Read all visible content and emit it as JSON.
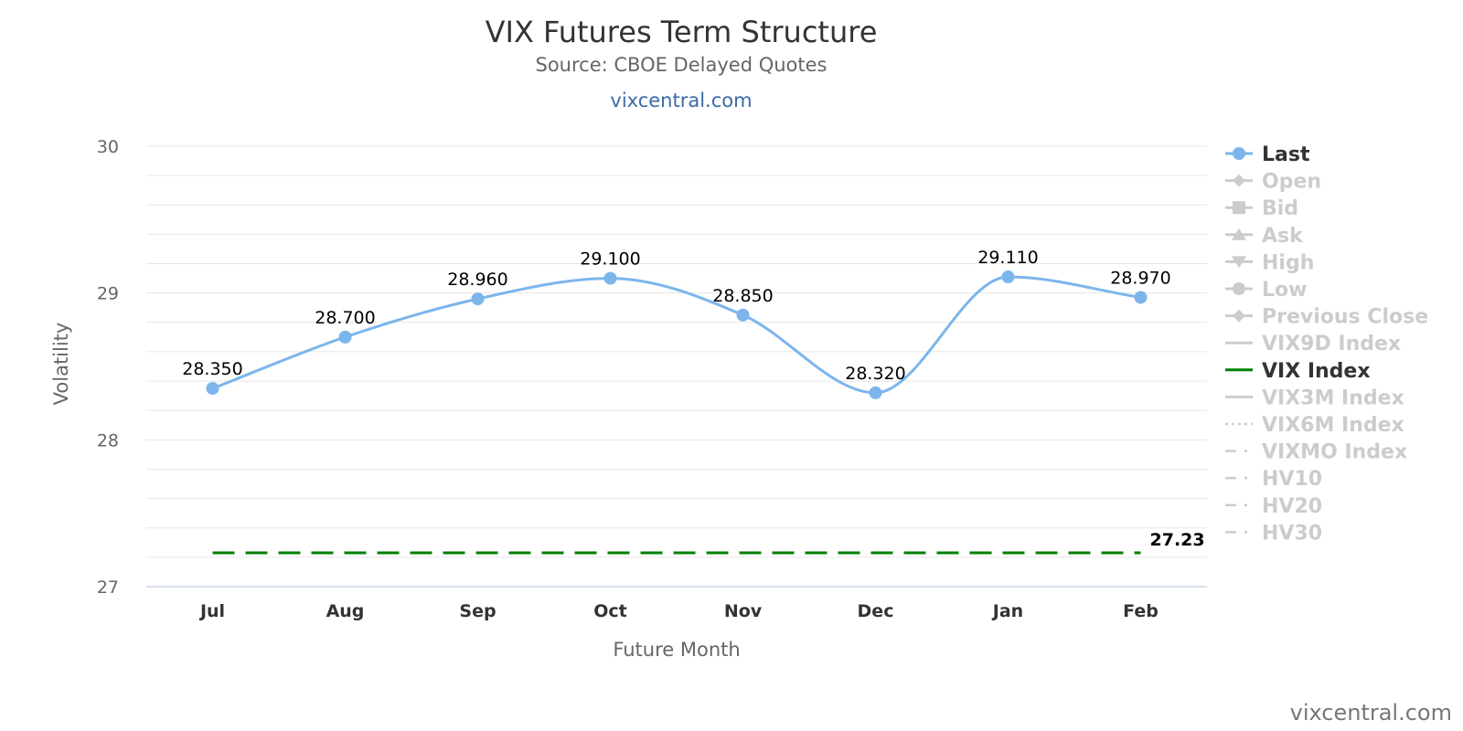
{
  "chart_data": {
    "type": "line",
    "title": "VIX Futures Term Structure",
    "subtitle": "Source: CBOE Delayed Quotes",
    "subtitle_link": "vixcentral.com",
    "xlabel": "Future Month",
    "ylabel": "Volatility",
    "categories": [
      "Jul",
      "Aug",
      "Sep",
      "Oct",
      "Nov",
      "Dec",
      "Jan",
      "Feb"
    ],
    "ylim": [
      27,
      30
    ],
    "yticks": [
      "27",
      "28",
      "29",
      "30"
    ],
    "grid": true,
    "legend_position": "right",
    "series": [
      {
        "name": "Last",
        "values": [
          28.35,
          28.7,
          28.96,
          29.1,
          28.85,
          28.32,
          29.11,
          28.97
        ],
        "labels": [
          "28.350",
          "28.700",
          "28.960",
          "29.100",
          "28.850",
          "28.320",
          "29.110",
          "28.970"
        ],
        "color": "#7cb5ec"
      },
      {
        "name": "VIX Index",
        "values": [
          27.23,
          27.23,
          27.23,
          27.23,
          27.23,
          27.23,
          27.23,
          27.23
        ],
        "end_label": "27.23",
        "color": "#008000",
        "dash": "dashed"
      }
    ],
    "legend": [
      {
        "name": "Last",
        "active": true,
        "symbol": "circle",
        "color": "#7cb5ec"
      },
      {
        "name": "Open",
        "active": false,
        "symbol": "diamond"
      },
      {
        "name": "Bid",
        "active": false,
        "symbol": "square"
      },
      {
        "name": "Ask",
        "active": false,
        "symbol": "triangle"
      },
      {
        "name": "High",
        "active": false,
        "symbol": "triangle-down"
      },
      {
        "name": "Low",
        "active": false,
        "symbol": "circle"
      },
      {
        "name": "Previous Close",
        "active": false,
        "symbol": "diamond"
      },
      {
        "name": "VIX9D Index",
        "active": false,
        "symbol": "line"
      },
      {
        "name": "VIX Index",
        "active": true,
        "symbol": "line",
        "color": "#008000"
      },
      {
        "name": "VIX3M Index",
        "active": false,
        "symbol": "line"
      },
      {
        "name": "VIX6M Index",
        "active": false,
        "symbol": "dotted"
      },
      {
        "name": "VIXMO Index",
        "active": false,
        "symbol": "dashdot"
      },
      {
        "name": "HV10",
        "active": false,
        "symbol": "dashdot"
      },
      {
        "name": "HV20",
        "active": false,
        "symbol": "dashdot"
      },
      {
        "name": "HV30",
        "active": false,
        "symbol": "dashdot"
      }
    ],
    "credit": "vixcentral.com"
  }
}
